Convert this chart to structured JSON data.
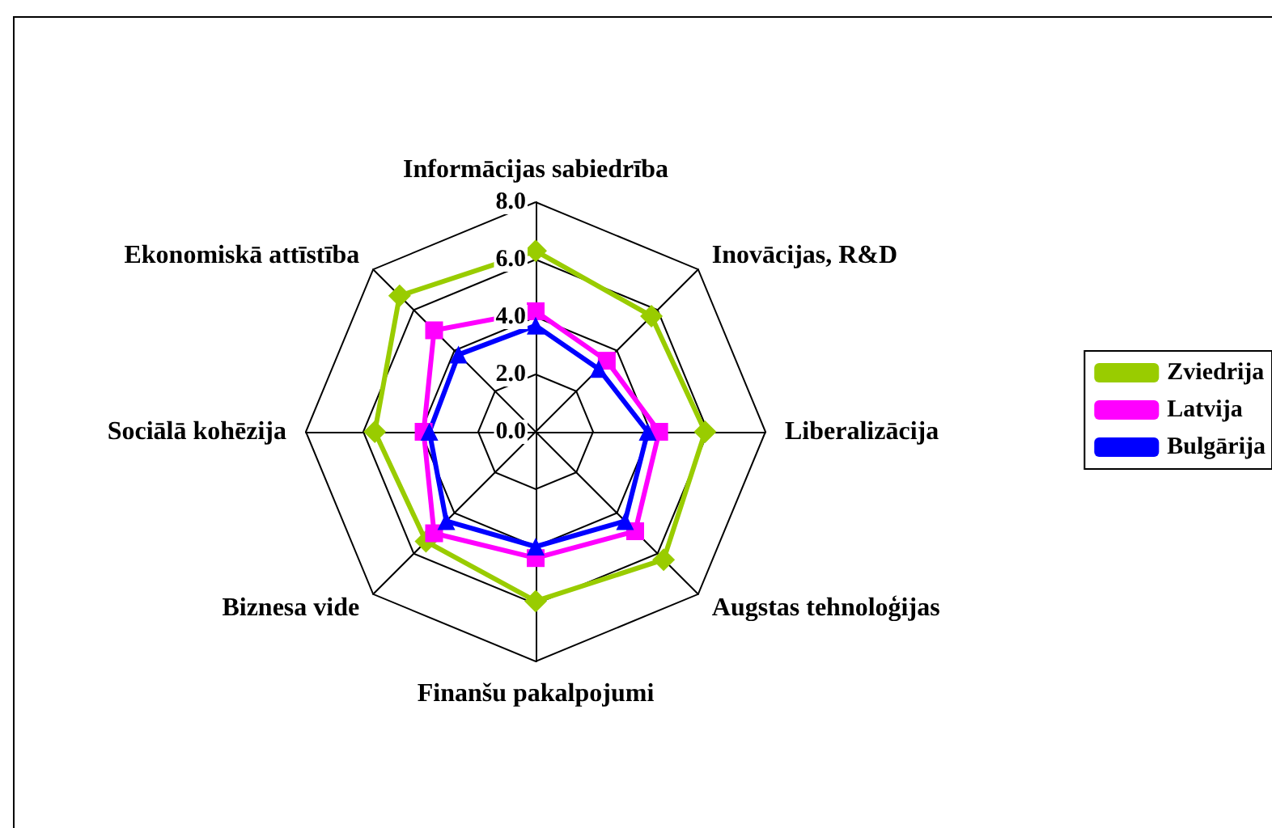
{
  "chart_data": {
    "type": "radar",
    "categories": [
      "Informācijas sabiedrība",
      "Inovācijas, R&D",
      "Liberalizācija",
      "Augstas tehnoloģijas",
      "Finanšu pakalpojumi",
      "Biznesa vide",
      "Sociālā kohēzija",
      "Ekonomiskā attīstība"
    ],
    "series": [
      {
        "name": "Zviedrija",
        "color": "#99cc00",
        "marker": "diamond",
        "values": [
          6.3,
          5.7,
          5.9,
          6.3,
          5.9,
          5.4,
          5.6,
          6.7
        ]
      },
      {
        "name": "Latvija",
        "color": "#ff00ff",
        "marker": "square",
        "values": [
          4.2,
          3.5,
          4.3,
          4.9,
          4.4,
          5.0,
          3.9,
          5.0
        ]
      },
      {
        "name": "Bulgārija",
        "color": "#0000ff",
        "marker": "triangle",
        "values": [
          3.7,
          3.1,
          3.9,
          4.4,
          4.0,
          4.4,
          3.7,
          3.8
        ]
      }
    ],
    "ylim": [
      0,
      8
    ],
    "yticks": [
      {
        "value": 0,
        "label": "0.0"
      },
      {
        "value": 2,
        "label": "2.0"
      },
      {
        "value": 4,
        "label": "4.0"
      },
      {
        "value": 6,
        "label": "6.0"
      },
      {
        "value": 8,
        "label": "8.0"
      }
    ],
    "legend": "right"
  }
}
